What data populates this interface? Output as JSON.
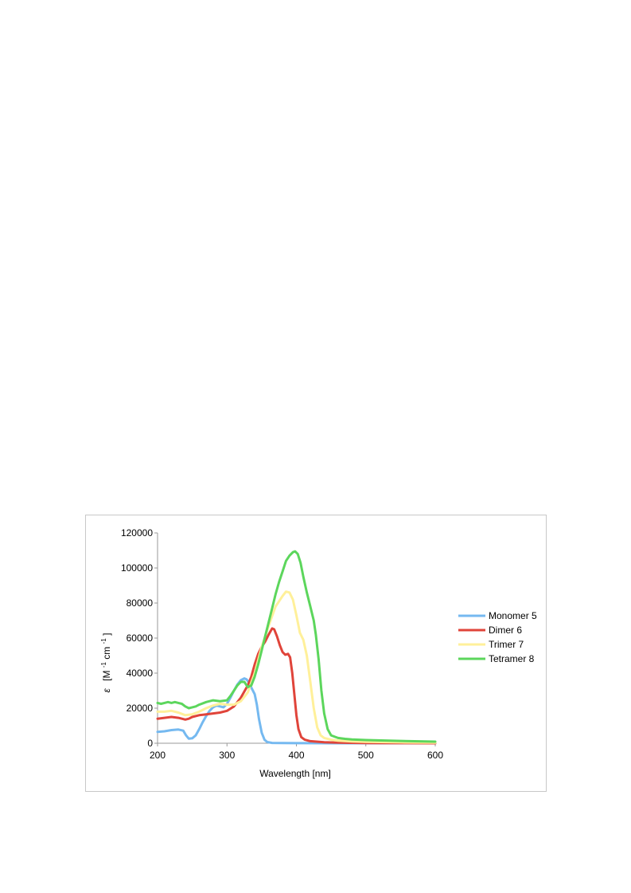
{
  "chart_data": {
    "type": "line",
    "title": "",
    "xlabel": "Wavelength [nm]",
    "ylabel_symbol": "ε",
    "ylabel_unit_open": "[M",
    "ylabel_unit_exp1": "-1",
    "ylabel_unit_mid": "cm",
    "ylabel_unit_exp2": "-1",
    "ylabel_unit_close": "]",
    "xlim": [
      200,
      600
    ],
    "ylim": [
      0,
      120000
    ],
    "x_ticks": [
      "200",
      "300",
      "400",
      "500",
      "600"
    ],
    "y_ticks": [
      "0",
      "20000",
      "40000",
      "60000",
      "80000",
      "100000",
      "120000"
    ],
    "grid": false,
    "legend_position": "right",
    "series": [
      {
        "name": "Monomer 5",
        "color": "#75b9f0",
        "points": [
          [
            200,
            6500
          ],
          [
            210,
            6800
          ],
          [
            220,
            7500
          ],
          [
            230,
            7800
          ],
          [
            237,
            7200
          ],
          [
            241,
            4500
          ],
          [
            245,
            2600
          ],
          [
            250,
            2800
          ],
          [
            255,
            4500
          ],
          [
            260,
            8000
          ],
          [
            265,
            12000
          ],
          [
            270,
            15500
          ],
          [
            275,
            18500
          ],
          [
            280,
            20500
          ],
          [
            285,
            21500
          ],
          [
            290,
            21000
          ],
          [
            295,
            20500
          ],
          [
            300,
            22500
          ],
          [
            305,
            26000
          ],
          [
            310,
            30000
          ],
          [
            315,
            33500
          ],
          [
            320,
            36000
          ],
          [
            325,
            37000
          ],
          [
            328,
            36500
          ],
          [
            330,
            35500
          ],
          [
            333,
            33500
          ],
          [
            336,
            31000
          ],
          [
            340,
            28000
          ],
          [
            343,
            22000
          ],
          [
            346,
            14000
          ],
          [
            350,
            6000
          ],
          [
            354,
            2000
          ],
          [
            358,
            700
          ],
          [
            365,
            200
          ],
          [
            380,
            80
          ],
          [
            400,
            40
          ],
          [
            450,
            20
          ],
          [
            500,
            10
          ],
          [
            600,
            0
          ]
        ]
      },
      {
        "name": "Dimer 6",
        "color": "#e0443a",
        "points": [
          [
            200,
            14000
          ],
          [
            210,
            14500
          ],
          [
            220,
            15000
          ],
          [
            230,
            14500
          ],
          [
            240,
            13500
          ],
          [
            245,
            14000
          ],
          [
            250,
            15000
          ],
          [
            260,
            16000
          ],
          [
            270,
            16500
          ],
          [
            280,
            17000
          ],
          [
            290,
            17500
          ],
          [
            300,
            18500
          ],
          [
            310,
            21000
          ],
          [
            320,
            26000
          ],
          [
            330,
            33000
          ],
          [
            335,
            38000
          ],
          [
            340,
            45000
          ],
          [
            345,
            51000
          ],
          [
            350,
            55000
          ],
          [
            355,
            58000
          ],
          [
            360,
            62000
          ],
          [
            365,
            65500
          ],
          [
            368,
            65000
          ],
          [
            372,
            61000
          ],
          [
            376,
            56000
          ],
          [
            380,
            52000
          ],
          [
            384,
            50500
          ],
          [
            388,
            51000
          ],
          [
            391,
            49000
          ],
          [
            394,
            40000
          ],
          [
            397,
            28000
          ],
          [
            400,
            16000
          ],
          [
            403,
            8000
          ],
          [
            407,
            3500
          ],
          [
            412,
            2000
          ],
          [
            420,
            1200
          ],
          [
            440,
            600
          ],
          [
            460,
            300
          ],
          [
            500,
            150
          ],
          [
            550,
            60
          ],
          [
            600,
            0
          ]
        ]
      },
      {
        "name": "Trimer 7",
        "color": "#fff09a",
        "points": [
          [
            200,
            18000
          ],
          [
            210,
            18000
          ],
          [
            220,
            18500
          ],
          [
            230,
            17500
          ],
          [
            240,
            16000
          ],
          [
            250,
            16500
          ],
          [
            260,
            18000
          ],
          [
            270,
            20000
          ],
          [
            280,
            21500
          ],
          [
            290,
            22500
          ],
          [
            300,
            22000
          ],
          [
            310,
            22000
          ],
          [
            320,
            24000
          ],
          [
            330,
            29000
          ],
          [
            340,
            40000
          ],
          [
            350,
            55000
          ],
          [
            360,
            67000
          ],
          [
            370,
            78000
          ],
          [
            380,
            84000
          ],
          [
            385,
            86500
          ],
          [
            390,
            86000
          ],
          [
            395,
            82000
          ],
          [
            400,
            73000
          ],
          [
            405,
            63000
          ],
          [
            410,
            59000
          ],
          [
            415,
            50000
          ],
          [
            420,
            35000
          ],
          [
            425,
            20000
          ],
          [
            430,
            9000
          ],
          [
            435,
            4500
          ],
          [
            440,
            3000
          ],
          [
            450,
            2000
          ],
          [
            460,
            1500
          ],
          [
            480,
            1000
          ],
          [
            500,
            800
          ],
          [
            550,
            500
          ],
          [
            600,
            300
          ]
        ]
      },
      {
        "name": "Tetramer 8",
        "color": "#5cd65c",
        "points": [
          [
            200,
            23000
          ],
          [
            205,
            22500
          ],
          [
            210,
            23000
          ],
          [
            215,
            23500
          ],
          [
            220,
            23000
          ],
          [
            225,
            23500
          ],
          [
            230,
            23000
          ],
          [
            235,
            22500
          ],
          [
            240,
            21000
          ],
          [
            245,
            20000
          ],
          [
            250,
            20500
          ],
          [
            255,
            21000
          ],
          [
            260,
            22000
          ],
          [
            270,
            23500
          ],
          [
            280,
            24500
          ],
          [
            290,
            24000
          ],
          [
            300,
            24500
          ],
          [
            305,
            27000
          ],
          [
            310,
            30000
          ],
          [
            315,
            33000
          ],
          [
            320,
            35000
          ],
          [
            325,
            35000
          ],
          [
            330,
            32000
          ],
          [
            335,
            33000
          ],
          [
            340,
            38000
          ],
          [
            345,
            45000
          ],
          [
            350,
            53000
          ],
          [
            355,
            61000
          ],
          [
            360,
            69000
          ],
          [
            365,
            77000
          ],
          [
            370,
            85000
          ],
          [
            375,
            92000
          ],
          [
            380,
            98000
          ],
          [
            385,
            104000
          ],
          [
            390,
            107000
          ],
          [
            395,
            109000
          ],
          [
            398,
            109500
          ],
          [
            402,
            108000
          ],
          [
            406,
            103000
          ],
          [
            410,
            95000
          ],
          [
            415,
            86000
          ],
          [
            420,
            78000
          ],
          [
            425,
            70000
          ],
          [
            428,
            62000
          ],
          [
            432,
            48000
          ],
          [
            436,
            30000
          ],
          [
            440,
            17000
          ],
          [
            445,
            8000
          ],
          [
            450,
            4500
          ],
          [
            460,
            3000
          ],
          [
            470,
            2500
          ],
          [
            480,
            2200
          ],
          [
            500,
            1800
          ],
          [
            550,
            1300
          ],
          [
            600,
            900
          ]
        ]
      }
    ]
  }
}
